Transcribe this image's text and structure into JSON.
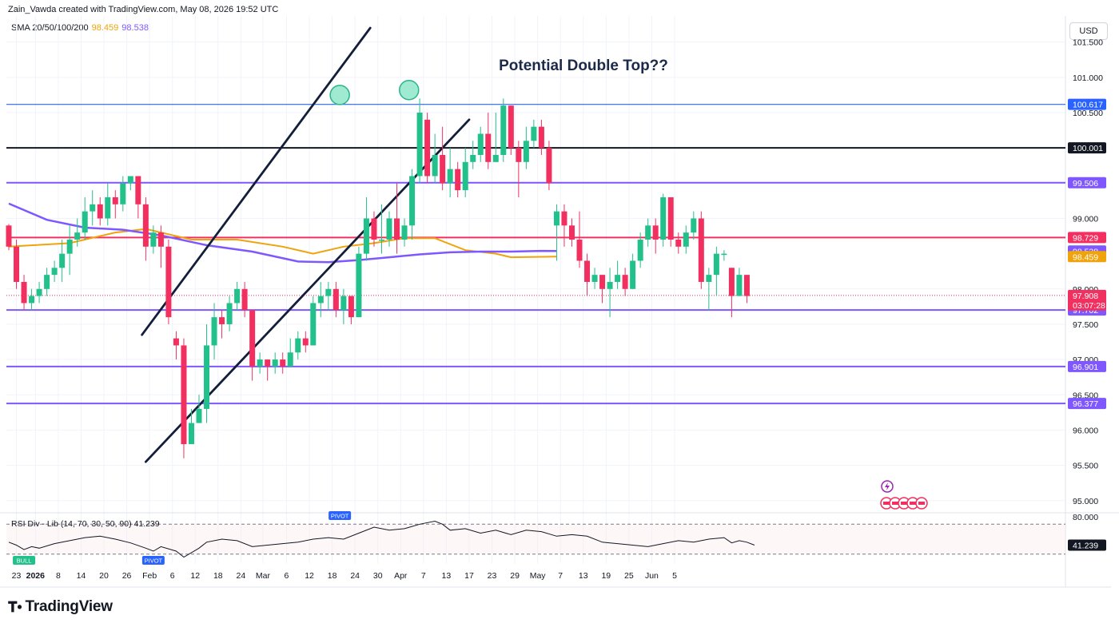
{
  "header": {
    "attribution": "Zain_Vawda created with TradingView.com, May 08, 2026 19:52 UTC",
    "sma_label": "SMA 20/50/100/200",
    "sma_value_1": "98.459",
    "sma_value_2": "98.538",
    "currency": "USD"
  },
  "rsi_legend": {
    "label": "RSI Div - Lib (14, 70, 30, 50, 90)",
    "value": "41.239"
  },
  "footer": {
    "logo_text": "TradingView"
  },
  "colors": {
    "bull": "#22c08a",
    "bear": "#f23060",
    "sma_orange": "#f0a30a",
    "sma_purple": "#7e57ff",
    "level_blue": "#2962ff",
    "level_black": "#131722",
    "level_purple": "#7e57ff",
    "level_red": "#f23060",
    "channel": "#131f3a",
    "grid": "#f0f3fa"
  },
  "chart_data": {
    "type": "candlestick",
    "symbol_currency": "USD",
    "annotation": "Potential Double Top??",
    "y_range": [
      94.85,
      101.87
    ],
    "y_ticks": [
      "95.000",
      "95.500",
      "96.000",
      "96.500",
      "97.000",
      "97.500",
      "98.000",
      "99.000",
      "99.500",
      "100.000",
      "100.500",
      "101.000",
      "101.500"
    ],
    "x_ticks": [
      {
        "label": "23",
        "i": 1
      },
      {
        "label": "2026",
        "i": 3.5
      },
      {
        "label": "8",
        "i": 6.5
      },
      {
        "label": "14",
        "i": 9.5
      },
      {
        "label": "20",
        "i": 12.5
      },
      {
        "label": "26",
        "i": 15.5
      },
      {
        "label": "Feb",
        "i": 18.5
      },
      {
        "label": "6",
        "i": 21.5
      },
      {
        "label": "12",
        "i": 24.5
      },
      {
        "label": "18",
        "i": 27.5
      },
      {
        "label": "24",
        "i": 30.5
      },
      {
        "label": "Mar",
        "i": 33.4
      },
      {
        "label": "6",
        "i": 36.5
      },
      {
        "label": "12",
        "i": 39.5
      },
      {
        "label": "18",
        "i": 42.5
      },
      {
        "label": "24",
        "i": 45.5
      },
      {
        "label": "30",
        "i": 48.5
      },
      {
        "label": "Apr",
        "i": 51.5
      },
      {
        "label": "7",
        "i": 54.5
      },
      {
        "label": "13",
        "i": 57.5
      },
      {
        "label": "17",
        "i": 60.5
      },
      {
        "label": "23",
        "i": 63.5
      },
      {
        "label": "29",
        "i": 66.5
      },
      {
        "label": "May",
        "i": 69.5
      },
      {
        "label": "7",
        "i": 72.5
      },
      {
        "label": "13",
        "i": 75.5
      },
      {
        "label": "19",
        "i": 78.5
      },
      {
        "label": "25",
        "i": 81.5
      },
      {
        "label": "Jun",
        "i": 84.5
      },
      {
        "label": "5",
        "i": 87.5
      }
    ],
    "candles": [
      [
        98.9,
        98.6,
        98.92,
        98.55
      ],
      [
        98.6,
        98.1,
        98.7,
        98.0
      ],
      [
        98.1,
        97.8,
        98.2,
        97.7
      ],
      [
        97.8,
        97.9,
        98.0,
        97.7
      ],
      [
        97.9,
        98.0,
        98.1,
        97.8
      ],
      [
        98.0,
        98.2,
        98.3,
        97.9
      ],
      [
        98.2,
        98.3,
        98.4,
        98.1
      ],
      [
        98.3,
        98.5,
        98.7,
        98.1
      ],
      [
        98.5,
        98.7,
        98.9,
        98.2
      ],
      [
        98.7,
        98.8,
        99.0,
        98.6
      ],
      [
        98.8,
        99.1,
        99.3,
        98.7
      ],
      [
        99.1,
        99.2,
        99.4,
        98.9
      ],
      [
        99.2,
        99.0,
        99.3,
        98.9
      ],
      [
        99.0,
        99.3,
        99.5,
        98.9
      ],
      [
        99.3,
        99.2,
        99.4,
        99.0
      ],
      [
        99.2,
        99.5,
        99.6,
        99.1
      ],
      [
        99.5,
        99.6,
        99.55,
        99.4
      ],
      [
        99.6,
        99.2,
        99.6,
        99.0
      ],
      [
        99.2,
        98.6,
        99.3,
        98.4
      ],
      [
        98.6,
        98.8,
        98.9,
        98.5
      ],
      [
        98.8,
        98.6,
        98.9,
        98.3
      ],
      [
        98.6,
        97.6,
        98.7,
        97.5
      ],
      [
        97.3,
        97.2,
        97.4,
        97.0
      ],
      [
        97.2,
        95.8,
        97.3,
        95.6
      ],
      [
        95.8,
        96.1,
        96.3,
        95.9
      ],
      [
        96.1,
        96.3,
        96.5,
        96.1
      ],
      [
        96.3,
        97.2,
        97.5,
        96.1
      ],
      [
        97.2,
        97.6,
        97.8,
        97.0
      ],
      [
        97.6,
        97.5,
        97.7,
        97.3
      ],
      [
        97.5,
        97.8,
        97.9,
        97.4
      ],
      [
        97.8,
        98.0,
        98.1,
        97.7
      ],
      [
        98.0,
        97.7,
        98.1,
        97.6
      ],
      [
        97.7,
        96.9,
        97.7,
        96.7
      ],
      [
        96.9,
        97.0,
        97.1,
        96.8
      ],
      [
        97.0,
        96.9,
        97.0,
        96.7
      ],
      [
        96.9,
        97.0,
        97.1,
        96.8
      ],
      [
        97.0,
        96.9,
        97.1,
        96.8
      ],
      [
        96.9,
        97.1,
        97.3,
        96.9
      ],
      [
        97.1,
        97.3,
        97.4,
        97.0
      ],
      [
        97.3,
        97.2,
        97.4,
        97.1
      ],
      [
        97.2,
        97.8,
        97.9,
        97.2
      ],
      [
        97.8,
        97.9,
        98.1,
        97.6
      ],
      [
        97.9,
        98.0,
        98.1,
        97.7
      ],
      [
        98.0,
        97.7,
        98.1,
        97.6
      ],
      [
        97.7,
        97.9,
        98.0,
        97.5
      ],
      [
        97.9,
        97.6,
        97.8,
        97.5
      ],
      [
        97.6,
        98.5,
        98.6,
        97.6
      ],
      [
        98.5,
        99.0,
        99.3,
        98.4
      ],
      [
        99.0,
        98.7,
        99.1,
        98.6
      ],
      [
        98.7,
        98.7,
        99.2,
        98.5
      ],
      [
        98.7,
        99.0,
        99.1,
        98.6
      ],
      [
        99.0,
        98.7,
        99.5,
        98.5
      ],
      [
        98.7,
        98.9,
        99.0,
        98.6
      ],
      [
        98.9,
        99.6,
        99.7,
        98.7
      ],
      [
        99.6,
        100.5,
        100.7,
        99.5
      ],
      [
        100.4,
        99.6,
        100.5,
        99.5
      ],
      [
        99.6,
        99.9,
        100.2,
        99.5
      ],
      [
        99.9,
        99.5,
        100.3,
        99.4
      ],
      [
        99.5,
        99.7,
        100.0,
        99.3
      ],
      [
        99.7,
        99.4,
        99.8,
        99.3
      ],
      [
        99.4,
        99.8,
        100.0,
        99.3
      ],
      [
        99.8,
        99.9,
        100.1,
        99.7
      ],
      [
        99.9,
        100.2,
        100.3,
        99.8
      ],
      [
        100.2,
        99.8,
        100.5,
        99.7
      ],
      [
        99.8,
        99.9,
        100.5,
        99.8
      ],
      [
        99.9,
        100.6,
        100.7,
        99.8
      ],
      [
        100.6,
        100.0,
        100.6,
        99.9
      ],
      [
        100.0,
        99.8,
        100.1,
        99.3
      ],
      [
        99.8,
        100.1,
        100.3,
        99.7
      ],
      [
        100.1,
        100.3,
        100.4,
        100.0
      ],
      [
        100.3,
        100.0,
        100.4,
        99.9
      ],
      [
        100.0,
        99.5,
        100.1,
        99.4
      ],
      [
        98.9,
        99.1,
        99.2,
        98.4
      ],
      [
        99.1,
        98.9,
        99.2,
        98.6
      ],
      [
        98.9,
        98.7,
        99.0,
        98.6
      ],
      [
        98.7,
        98.4,
        99.1,
        98.3
      ],
      [
        98.4,
        98.1,
        98.5,
        97.9
      ],
      [
        98.1,
        98.2,
        98.3,
        98.0
      ],
      [
        98.2,
        98.0,
        98.2,
        97.8
      ],
      [
        98.0,
        98.1,
        98.3,
        97.6
      ],
      [
        98.1,
        98.2,
        98.4,
        98.0
      ],
      [
        98.2,
        98.0,
        98.3,
        97.9
      ],
      [
        98.0,
        98.4,
        98.5,
        98.0
      ],
      [
        98.4,
        98.7,
        98.8,
        98.3
      ],
      [
        98.7,
        98.9,
        99.0,
        98.6
      ],
      [
        98.9,
        98.7,
        99.0,
        98.5
      ],
      [
        98.7,
        99.3,
        99.35,
        98.6
      ],
      [
        99.3,
        98.7,
        99.3,
        98.6
      ],
      [
        98.7,
        98.6,
        98.8,
        98.5
      ],
      [
        98.6,
        98.8,
        98.9,
        98.5
      ],
      [
        98.8,
        99.0,
        99.1,
        98.7
      ],
      [
        99.0,
        98.1,
        99.1,
        98.0
      ],
      [
        98.1,
        98.2,
        98.3,
        97.7
      ],
      [
        98.2,
        98.5,
        98.6,
        97.9
      ],
      [
        98.5,
        98.5,
        98.55,
        98.4
      ],
      [
        98.3,
        97.9,
        98.3,
        97.6
      ],
      [
        97.9,
        98.2,
        98.3,
        97.9
      ],
      [
        98.2,
        97.9,
        98.2,
        97.8
      ]
    ],
    "sma_50": [
      [
        0,
        98.6
      ],
      [
        8,
        98.65
      ],
      [
        14,
        98.8
      ],
      [
        18,
        98.85
      ],
      [
        24,
        98.7
      ],
      [
        30,
        98.7
      ],
      [
        36,
        98.6
      ],
      [
        40,
        98.5
      ],
      [
        44,
        98.6
      ],
      [
        48,
        98.65
      ],
      [
        52,
        98.72
      ],
      [
        56,
        98.72
      ],
      [
        60,
        98.55
      ],
      [
        64,
        98.5
      ],
      [
        66,
        98.45
      ],
      [
        72,
        98.459
      ]
    ],
    "sma_200": [
      [
        0,
        99.21
      ],
      [
        5,
        98.98
      ],
      [
        10,
        98.87
      ],
      [
        15,
        98.84
      ],
      [
        20,
        98.76
      ],
      [
        26,
        98.62
      ],
      [
        32,
        98.53
      ],
      [
        38,
        98.39
      ],
      [
        42,
        98.38
      ],
      [
        46,
        98.41
      ],
      [
        50,
        98.45
      ],
      [
        54,
        98.49
      ],
      [
        58,
        98.52
      ],
      [
        62,
        98.53
      ],
      [
        66,
        98.53
      ],
      [
        70,
        98.54
      ],
      [
        72,
        98.538
      ]
    ],
    "levels": [
      {
        "value": 100.617,
        "label": "100.617",
        "color": "level_blue",
        "width": 1.2
      },
      {
        "value": 100.001,
        "label": "100.001",
        "color": "level_black",
        "width": 2
      },
      {
        "value": 99.506,
        "label": "99.506",
        "color": "level_purple",
        "width": 2
      },
      {
        "value": 98.729,
        "label": "98.729",
        "color": "level_red",
        "width": 2
      },
      {
        "value": 97.702,
        "label": "97.702",
        "color": "level_purple",
        "width": 2
      },
      {
        "value": 96.901,
        "label": "96.901",
        "color": "level_purple",
        "width": 2
      },
      {
        "value": 96.377,
        "label": "96.377",
        "color": "level_purple",
        "width": 2
      }
    ],
    "price_tags": [
      {
        "value": 98.538,
        "label": "98.538",
        "color": "sma_purple"
      },
      {
        "value": 98.459,
        "label": "98.459",
        "color": "sma_orange"
      }
    ],
    "current_price": {
      "value": 97.908,
      "label": "97.908",
      "countdown": "03:07:28"
    },
    "channel": {
      "upper": [
        [
          17.5,
          97.35
        ],
        [
          47.5,
          101.7
        ]
      ],
      "lower": [
        [
          18,
          95.55
        ],
        [
          60.5,
          100.4
        ]
      ]
    },
    "tops": [
      {
        "i": 43.5,
        "value": 100.75
      },
      {
        "i": 52.6,
        "value": 100.82
      }
    ],
    "rsi": {
      "range": [
        18,
        82
      ],
      "levels": [
        70,
        30
      ],
      "y_ticks": [
        "80.000"
      ],
      "value_label": "41.239",
      "series": [
        [
          0,
          46
        ],
        [
          1,
          42
        ],
        [
          2,
          36
        ],
        [
          3,
          40
        ],
        [
          4,
          38
        ],
        [
          6,
          44
        ],
        [
          8,
          48
        ],
        [
          10,
          52
        ],
        [
          12,
          54
        ],
        [
          14,
          50
        ],
        [
          16,
          45
        ],
        [
          18,
          38
        ],
        [
          19,
          34
        ],
        [
          20,
          40
        ],
        [
          22,
          34
        ],
        [
          23,
          26
        ],
        [
          24,
          32
        ],
        [
          25,
          38
        ],
        [
          26,
          46
        ],
        [
          28,
          50
        ],
        [
          30,
          48
        ],
        [
          32,
          40
        ],
        [
          34,
          42
        ],
        [
          36,
          44
        ],
        [
          38,
          46
        ],
        [
          40,
          50
        ],
        [
          42,
          52
        ],
        [
          44,
          50
        ],
        [
          46,
          58
        ],
        [
          48,
          66
        ],
        [
          50,
          62
        ],
        [
          52,
          64
        ],
        [
          54,
          70
        ],
        [
          56,
          74
        ],
        [
          57,
          70
        ],
        [
          58,
          62
        ],
        [
          60,
          64
        ],
        [
          62,
          58
        ],
        [
          64,
          62
        ],
        [
          66,
          56
        ],
        [
          68,
          62
        ],
        [
          70,
          60
        ],
        [
          72,
          54
        ],
        [
          74,
          56
        ],
        [
          76,
          54
        ],
        [
          78,
          46
        ],
        [
          80,
          44
        ],
        [
          82,
          42
        ],
        [
          84,
          40
        ],
        [
          86,
          44
        ],
        [
          88,
          48
        ],
        [
          90,
          46
        ],
        [
          92,
          50
        ],
        [
          94,
          52
        ],
        [
          95,
          45
        ],
        [
          96,
          48
        ],
        [
          97,
          46
        ],
        [
          98,
          42
        ]
      ],
      "markers": [
        {
          "i": 2,
          "label": "BULL",
          "color": "bull",
          "pos": "below"
        },
        {
          "i": 19,
          "label": "PIVOT",
          "color": "level_blue",
          "pos": "below"
        },
        {
          "i": 43.5,
          "label": "PIVOT",
          "color": "level_blue",
          "pos": "above"
        }
      ]
    }
  }
}
